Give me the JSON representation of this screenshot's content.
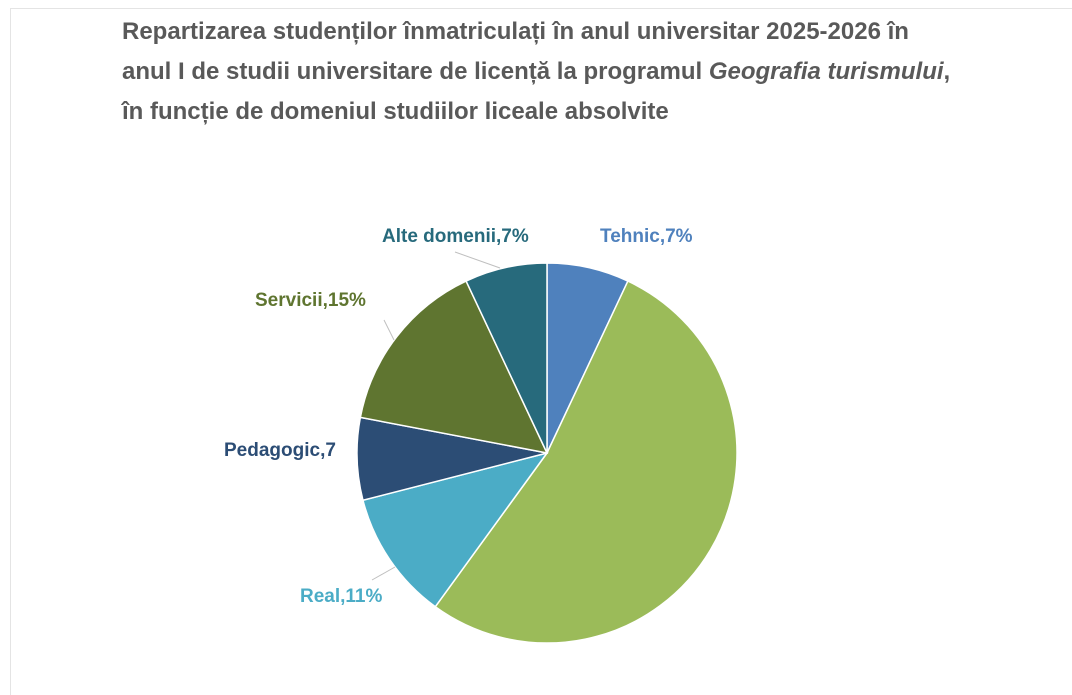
{
  "chart_data": {
    "type": "pie",
    "title": [
      "Repartizarea studenților înmatriculați în anul universitar 2025-2026 în anul I de studii universitare de licență la programul ",
      "Geografia turismului",
      ", în funcție de domeniul studiilor liceale absolvite"
    ],
    "values": [
      7,
      53,
      11,
      7,
      15,
      7
    ],
    "value_labels": [
      "Tehnic,7%",
      null,
      "Real,11%",
      "Pedagogic,7",
      "Servicii,15%",
      "Alte domenii,7%"
    ],
    "colors": [
      "#4f81bd",
      "#9bbb59",
      "#4bacc6",
      "#2c4d75",
      "#5f7530",
      "#276a7c"
    ],
    "label_colors": [
      "#4f81bd",
      "#9bbb59",
      "#4bacc6",
      "#2c4d75",
      "#5f7530",
      "#276a7c"
    ]
  }
}
